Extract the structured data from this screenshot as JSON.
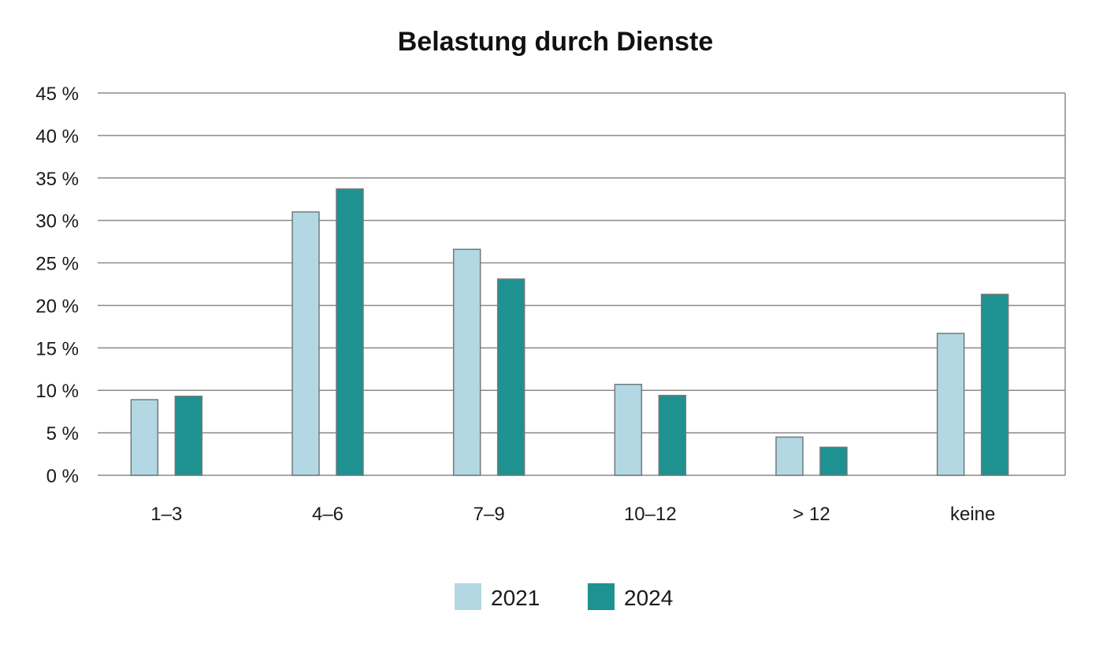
{
  "chart_data": {
    "type": "bar",
    "title": "Belastung durch Dienste",
    "xlabel": "",
    "ylabel": "",
    "categories": [
      "1–3",
      "4–6",
      "7–9",
      "10–12",
      "> 12",
      "keine"
    ],
    "series": [
      {
        "name": "2021",
        "values": [
          8.9,
          31.0,
          26.6,
          10.7,
          4.5,
          16.7
        ],
        "color": "#b3d8e3"
      },
      {
        "name": "2024",
        "values": [
          9.3,
          33.7,
          23.1,
          9.4,
          3.3,
          21.3
        ],
        "color": "#1e9290"
      }
    ],
    "ylim": [
      0,
      45
    ],
    "yticks": [
      "0 %",
      "5 %",
      "10 %",
      "15 %",
      "20 %",
      "25 %",
      "30 %",
      "35 %",
      "40 %",
      "45 %"
    ],
    "grid": true,
    "legend_position": "bottom-center"
  }
}
